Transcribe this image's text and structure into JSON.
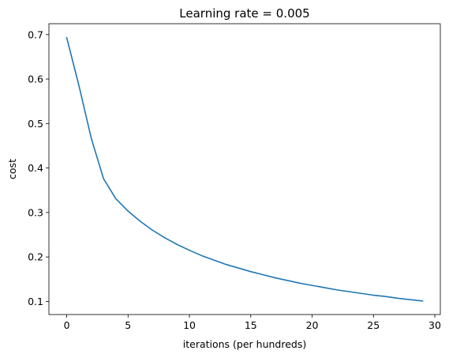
{
  "chart_data": {
    "type": "line",
    "title": "Learning rate = 0.005",
    "xlabel": "iterations (per hundreds)",
    "ylabel": "cost",
    "xlim": [
      -1.45,
      30.45
    ],
    "ylim": [
      0.0705,
      0.7245
    ],
    "xticks": [
      0,
      5,
      10,
      15,
      20,
      25,
      30
    ],
    "xtick_labels": [
      "0",
      "5",
      "10",
      "15",
      "20",
      "25",
      "30"
    ],
    "yticks": [
      0.1,
      0.2,
      0.3,
      0.4,
      0.5,
      0.6,
      0.7
    ],
    "ytick_labels": [
      "0.1",
      "0.2",
      "0.3",
      "0.4",
      "0.5",
      "0.6",
      "0.7"
    ],
    "grid": false,
    "legend": "none",
    "series": [
      {
        "color": "#1f77b4",
        "x": [
          0,
          1,
          2,
          3,
          4,
          5,
          6,
          7,
          8,
          9,
          10,
          11,
          12,
          13,
          14,
          15,
          16,
          17,
          18,
          19,
          20,
          21,
          22,
          23,
          24,
          25,
          26,
          27,
          28,
          29
        ],
        "values": [
          0.693,
          0.585,
          0.467,
          0.376,
          0.331,
          0.303,
          0.28,
          0.26,
          0.243,
          0.228,
          0.215,
          0.203,
          0.193,
          0.183,
          0.175,
          0.167,
          0.16,
          0.153,
          0.147,
          0.141,
          0.136,
          0.131,
          0.126,
          0.122,
          0.118,
          0.114,
          0.111,
          0.107,
          0.104,
          0.101
        ]
      }
    ]
  }
}
